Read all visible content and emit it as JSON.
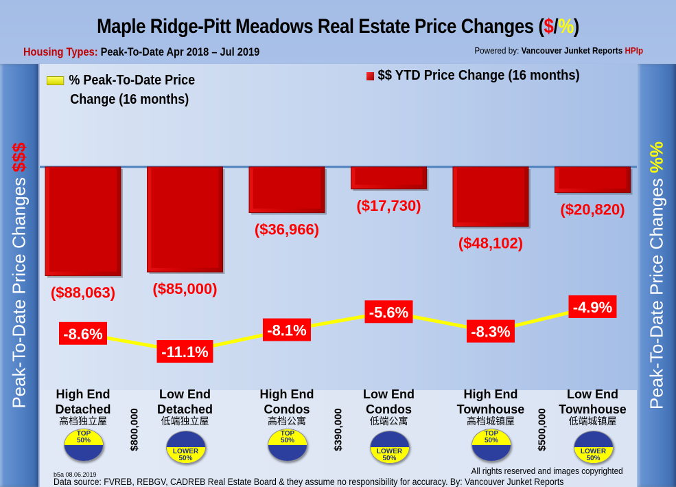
{
  "header": {
    "title_main": "Maple Ridge-Pitt Meadows Real Estate Price Changes (",
    "title_dollar": "$",
    "title_slash": "/",
    "title_pct": "%",
    "title_end": ")",
    "subtitle_label": "Housing Types:",
    "subtitle_value": " Peak-To-Date Apr 2018 – Jul 2019",
    "powered_prefix": "Powered by: ",
    "powered_brand": "Vancouver Junket Reports ",
    "powered_hpi": "HPIp"
  },
  "side_left": {
    "text": "Peak-To-Date Price Changes ",
    "accent": "$$$"
  },
  "side_right": {
    "text": "Peak-To-Date  Price  Changes ",
    "accent": "%%"
  },
  "colors": {
    "bar": "#cc0000",
    "line": "#ffff00",
    "label_bg": "#ff0000",
    "value_text": "#ff0000"
  },
  "chart_data": {
    "type": "bar",
    "title": "Maple Ridge-Pitt Meadows Real Estate Price Changes ($/%)",
    "subtitle": "Housing Types: Peak-To-Date Apr 2018 – Jul 2019",
    "categories": [
      "High End Detached",
      "Low End Detached",
      "High End Condos",
      "Low End Condos",
      "High End Townhouse",
      "Low End Townhouse"
    ],
    "series": [
      {
        "name": "$$ YTD Price Change (16 months)",
        "type": "bar",
        "values": [
          -88063,
          -85000,
          -36966,
          -17730,
          -48102,
          -20820
        ],
        "labels": [
          "($88,063)",
          "($85,000)",
          "($36,966)",
          "($17,730)",
          "($48,102)",
          "($20,820)"
        ]
      },
      {
        "name": "% Peak-To-Date Price Change (16 months)",
        "type": "line",
        "values": [
          -8.6,
          -11.1,
          -8.1,
          -5.6,
          -8.3,
          -4.9
        ],
        "labels": [
          "-8.6%",
          "-11.1%",
          "-8.1%",
          "-5.6%",
          "-8.3%",
          "-4.9%"
        ]
      }
    ],
    "ylabel_left": "Peak-To-Date Price Changes $$$",
    "ylabel_right": "Peak-To-Date Price Changes %%",
    "ylim_left": [
      -100000,
      0
    ],
    "legend": "top"
  },
  "legend": {
    "line_l1": "% Peak-To-Date Price",
    "line_l2": "Change (16 months)",
    "bar": "$$ YTD Price Change (16 months)"
  },
  "categories": [
    {
      "l1": "High End",
      "l2": "Detached",
      "cn": "高档独立屋",
      "badge": "top",
      "b1": "TOP",
      "b2": "50%"
    },
    {
      "l1": "Low End",
      "l2": "Detached",
      "cn": "低端独立屋",
      "badge": "lower",
      "b1": "LOWER",
      "b2": "50%"
    },
    {
      "l1": "High End",
      "l2": "Condos",
      "cn": "高档公寓",
      "badge": "top",
      "b1": "TOP",
      "b2": "50%"
    },
    {
      "l1": "Low End",
      "l2": "Condos",
      "cn": "低端公寓",
      "badge": "lower",
      "b1": "LOWER",
      "b2": "50%"
    },
    {
      "l1": "High End",
      "l2": "Townhouse",
      "cn": "高档城镇屋",
      "badge": "top",
      "b1": "TOP",
      "b2": "50%"
    },
    {
      "l1": "Low End",
      "l2": "Townhouse",
      "cn": "低端城镇屋",
      "badge": "lower",
      "b1": "LOWER",
      "b2": "50%"
    }
  ],
  "thresholds": [
    "$800,000",
    "$390,000",
    "$500,000"
  ],
  "footer": {
    "id": "b5a 08.06.2019",
    "rights": "All rights reserved and  images copyrighted",
    "source": "Data source: FVREB, REBGV, CADREB Real Estate Board & they assume no responsibility for accuracy. By: Vancouver Junket Reports"
  }
}
